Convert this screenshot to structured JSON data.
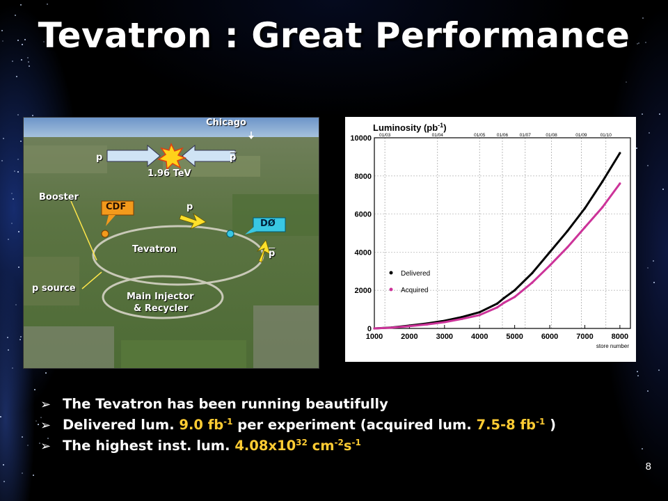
{
  "slide": {
    "title": "Tevatron : Great Performance",
    "page_number": "8"
  },
  "aerial": {
    "labels": {
      "chicago": "Chicago",
      "p_left": "p",
      "p_right": "p",
      "energy": "1.96 TeV",
      "booster": "Booster",
      "cdf": "CDF",
      "p_mid": "p",
      "d0": "DØ",
      "tevatron": "Tevatron",
      "p_low": "p",
      "p_source": "p source",
      "main_injector_1": "Main Injector",
      "main_injector_2": "& Recycler"
    }
  },
  "chart_data": {
    "type": "line",
    "title": "Luminosity (pb",
    "title_sup": "-1",
    "title_end": ")",
    "xlabel": "store number",
    "xlim": [
      1000,
      8300
    ],
    "ylim": [
      0,
      10000
    ],
    "x_ticks": [
      "1000",
      "2000",
      "3000",
      "4000",
      "5000",
      "6000",
      "7000",
      "8000"
    ],
    "y_ticks": [
      "0",
      "2000",
      "4000",
      "6000",
      "8000",
      "10000"
    ],
    "date_ticks": [
      {
        "label": "01/03",
        "x": 1300
      },
      {
        "label": "01/04",
        "x": 2800
      },
      {
        "label": "01/05",
        "x": 4000
      },
      {
        "label": "01/06",
        "x": 4650
      },
      {
        "label": "01/07",
        "x": 5300
      },
      {
        "label": "01/08",
        "x": 6050
      },
      {
        "label": "01/09",
        "x": 6900
      },
      {
        "label": "01/10",
        "x": 7600
      }
    ],
    "legend": {
      "placement": "bottom-left"
    },
    "series": [
      {
        "name": "Delivered",
        "color": "#000000",
        "x": [
          1000,
          1500,
          2000,
          2500,
          3000,
          3500,
          4000,
          4500,
          4700,
          5000,
          5500,
          6000,
          6500,
          7000,
          7500,
          8000
        ],
        "y": [
          0,
          50,
          150,
          260,
          400,
          600,
          850,
          1300,
          1600,
          2000,
          2900,
          4000,
          5100,
          6300,
          7700,
          9200
        ]
      },
      {
        "name": "Acquired",
        "color": "#cc3399",
        "x": [
          1000,
          1500,
          2000,
          2500,
          3000,
          3500,
          4000,
          4500,
          4700,
          5000,
          5500,
          6000,
          6500,
          7000,
          7500,
          8000
        ],
        "y": [
          0,
          40,
          120,
          210,
          330,
          500,
          700,
          1100,
          1350,
          1650,
          2400,
          3300,
          4250,
          5300,
          6350,
          7600
        ]
      }
    ]
  },
  "bullets": [
    {
      "parts": [
        {
          "t": "The Tevatron has been running beautifully"
        }
      ]
    },
    {
      "parts": [
        {
          "t": "Delivered lum. "
        },
        {
          "t": "9.0 fb",
          "hl": true
        },
        {
          "t": "-1",
          "hl": true,
          "sup": true
        },
        {
          "t": " per experiment  (acquired lum. "
        },
        {
          "t": "7.5-8 fb",
          "hl": true
        },
        {
          "t": "-1",
          "hl": true,
          "sup": true
        },
        {
          "t": " )"
        }
      ]
    },
    {
      "parts": [
        {
          "t": "The highest inst. lum. "
        },
        {
          "t": "4.08x10",
          "hl": true
        },
        {
          "t": "32",
          "hl": true,
          "sup": true
        },
        {
          "t": " cm",
          "hl": true
        },
        {
          "t": "-2",
          "hl": true,
          "sup": true
        },
        {
          "t": "s",
          "hl": true
        },
        {
          "t": "-1",
          "hl": true,
          "sup": true
        }
      ]
    }
  ]
}
